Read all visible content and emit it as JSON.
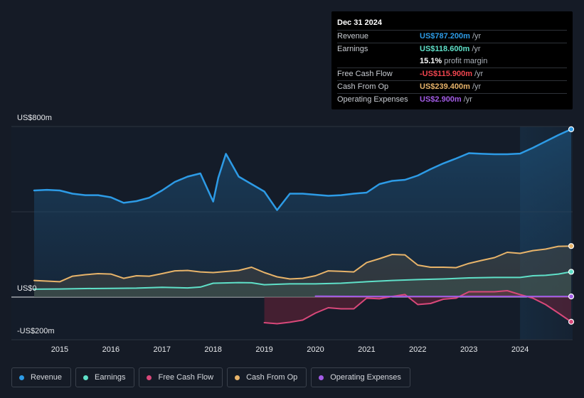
{
  "tooltip": {
    "date": "Dec 31 2024",
    "revenue_label": "Revenue",
    "revenue_value": "US$787.200m",
    "revenue_unit": "/yr",
    "earnings_label": "Earnings",
    "earnings_value": "US$118.600m",
    "earnings_unit": "/yr",
    "margin_value": "15.1%",
    "margin_text": "profit margin",
    "fcf_label": "Free Cash Flow",
    "fcf_value": "-US$115.900m",
    "fcf_unit": "/yr",
    "cfo_label": "Cash From Op",
    "cfo_value": "US$239.400m",
    "cfo_unit": "/yr",
    "opex_label": "Operating Expenses",
    "opex_value": "US$2.900m",
    "opex_unit": "/yr"
  },
  "legend": {
    "revenue": "Revenue",
    "earnings": "Earnings",
    "fcf": "Free Cash Flow",
    "cfo": "Cash From Op",
    "opex": "Operating Expenses"
  },
  "colors": {
    "revenue": "#2d9be6",
    "earnings": "#5fe0c8",
    "fcf": "#d9487a",
    "cfo": "#e8b46a",
    "opex": "#a35ce6",
    "background": "#151b26"
  },
  "chart_data": {
    "type": "area",
    "title": "",
    "xlabel": "",
    "ylabel": "",
    "ylim": [
      -200,
      800
    ],
    "y_tick_labels": [
      {
        "value": 800,
        "label": "US$800m"
      },
      {
        "value": 0,
        "label": "US$0"
      },
      {
        "value": -200,
        "label": "-US$200m"
      }
    ],
    "x_ticks": [
      {
        "value": 2015,
        "label": "2015"
      },
      {
        "value": 2016,
        "label": "2016"
      },
      {
        "value": 2017,
        "label": "2017"
      },
      {
        "value": 2018,
        "label": "2018"
      },
      {
        "value": 2019,
        "label": "2019"
      },
      {
        "value": 2020,
        "label": "2020"
      },
      {
        "value": 2021,
        "label": "2021"
      },
      {
        "value": 2022,
        "label": "2022"
      },
      {
        "value": 2023,
        "label": "2023"
      },
      {
        "value": 2024,
        "label": "2024"
      }
    ],
    "xlim": [
      2014.5,
      2025.0
    ],
    "highlight_start": 2024.0,
    "series": [
      {
        "name": "Revenue",
        "key": "revenue",
        "x": [
          2014.5,
          2014.75,
          2015.0,
          2015.25,
          2015.5,
          2015.75,
          2016.0,
          2016.25,
          2016.5,
          2016.75,
          2017.0,
          2017.25,
          2017.5,
          2017.75,
          2018.0,
          2018.1,
          2018.25,
          2018.5,
          2018.75,
          2019.0,
          2019.25,
          2019.5,
          2019.75,
          2020.0,
          2020.25,
          2020.5,
          2020.75,
          2021.0,
          2021.25,
          2021.5,
          2021.75,
          2022.0,
          2022.25,
          2022.5,
          2022.75,
          2023.0,
          2023.25,
          2023.5,
          2023.75,
          2024.0,
          2024.25,
          2024.5,
          2024.75,
          2025.0
        ],
        "values": [
          500,
          503,
          500,
          485,
          478,
          478,
          468,
          442,
          450,
          466,
          500,
          540,
          565,
          580,
          448,
          560,
          672,
          565,
          530,
          495,
          408,
          485,
          485,
          480,
          475,
          478,
          485,
          490,
          530,
          545,
          550,
          570,
          600,
          627,
          650,
          675,
          672,
          670,
          670,
          673,
          700,
          730,
          760,
          787.2
        ]
      },
      {
        "name": "Earnings",
        "key": "earnings",
        "x": [
          2014.5,
          2015.0,
          2015.5,
          2016.0,
          2016.5,
          2017.0,
          2017.5,
          2017.75,
          2018.0,
          2018.5,
          2018.75,
          2019.0,
          2019.5,
          2020.0,
          2020.5,
          2021.0,
          2021.5,
          2022.0,
          2022.5,
          2023.0,
          2023.5,
          2024.0,
          2024.25,
          2024.5,
          2024.75,
          2025.0
        ],
        "values": [
          37,
          38,
          40,
          41,
          42,
          46,
          43,
          47,
          65,
          68,
          67,
          58,
          62,
          62,
          65,
          72,
          78,
          82,
          85,
          90,
          92,
          92,
          100,
          102,
          108,
          118.6
        ]
      },
      {
        "name": "Free Cash Flow",
        "key": "fcf",
        "x": [
          2019.0,
          2019.25,
          2019.5,
          2019.75,
          2020.0,
          2020.25,
          2020.5,
          2020.75,
          2021.0,
          2021.25,
          2021.5,
          2021.75,
          2022.0,
          2022.25,
          2022.5,
          2022.75,
          2023.0,
          2023.25,
          2023.5,
          2023.75,
          2024.0,
          2024.25,
          2024.5,
          2024.75,
          2025.0
        ],
        "values": [
          -120,
          -125,
          -118,
          -108,
          -75,
          -50,
          -55,
          -55,
          -5,
          -8,
          3,
          12,
          -35,
          -30,
          -10,
          -5,
          25,
          25,
          25,
          30,
          12,
          -5,
          -35,
          -75,
          -115.9
        ]
      },
      {
        "name": "Cash From Op",
        "key": "cfo",
        "x": [
          2014.5,
          2015.0,
          2015.25,
          2015.5,
          2015.75,
          2016.0,
          2016.25,
          2016.5,
          2016.75,
          2017.0,
          2017.25,
          2017.5,
          2017.75,
          2018.0,
          2018.5,
          2018.75,
          2019.0,
          2019.25,
          2019.5,
          2019.75,
          2020.0,
          2020.25,
          2020.5,
          2020.75,
          2021.0,
          2021.25,
          2021.5,
          2021.75,
          2022.0,
          2022.25,
          2022.5,
          2022.75,
          2023.0,
          2023.25,
          2023.5,
          2023.75,
          2024.0,
          2024.25,
          2024.5,
          2024.75,
          2025.0
        ],
        "values": [
          78,
          72,
          98,
          105,
          110,
          108,
          88,
          100,
          98,
          110,
          123,
          125,
          118,
          115,
          125,
          140,
          115,
          95,
          85,
          88,
          100,
          123,
          121,
          118,
          162,
          180,
          200,
          198,
          150,
          140,
          140,
          138,
          158,
          172,
          185,
          210,
          205,
          218,
          225,
          238,
          239.4
        ]
      },
      {
        "name": "Operating Expenses",
        "key": "opex",
        "x": [
          2020.0,
          2021.0,
          2022.0,
          2023.0,
          2024.0,
          2025.0
        ],
        "values": [
          4,
          3,
          3,
          3,
          3,
          2.9
        ]
      }
    ]
  }
}
